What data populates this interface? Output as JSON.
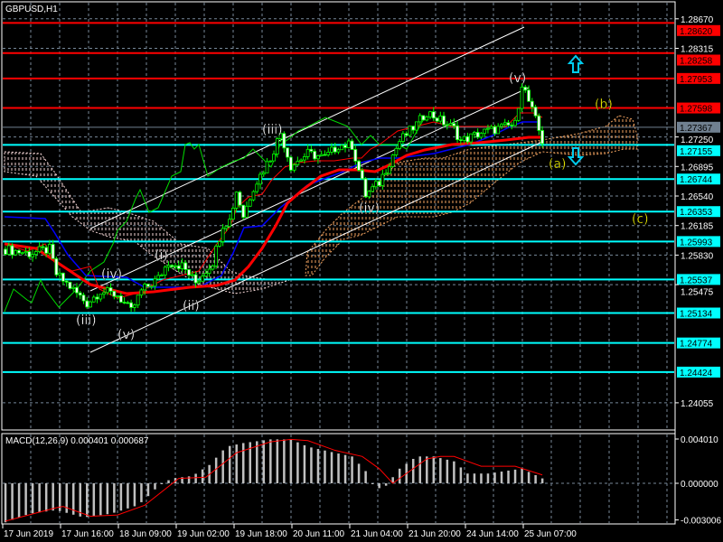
{
  "header": {
    "symbol_timeframe": "GBPUSD,H1"
  },
  "macd": {
    "label": "MACD(12,26,9) 0.000401 0.000687"
  },
  "colors": {
    "red_level": "#ff0000",
    "cyan_level": "#00ffff",
    "current_price": "#708090",
    "candle": "#00ff00",
    "wave_white": "#ffffff",
    "wave_yellow": "#e8e800"
  },
  "price_axis": {
    "ticks": [
      "1.28670",
      "1.28315",
      "1.27250",
      "1.26895",
      "1.26540",
      "1.26185",
      "1.25830",
      "1.25475",
      "1.24055"
    ],
    "current_price": "1.27367"
  },
  "levels": {
    "red": [
      "1.28620",
      "1.28258",
      "1.27953",
      "1.27598"
    ],
    "cyan": [
      "1.27155",
      "1.26744",
      "1.26353",
      "1.25993",
      "1.25537",
      "1.25134",
      "1.24774",
      "1.24424"
    ]
  },
  "macd_axis": {
    "ticks": [
      "0.004010",
      "0.000000",
      "-0.003006"
    ]
  },
  "time_axis": {
    "labels": [
      "17 Jun 2019",
      "17 Jun 16:00",
      "18 Jun 09:00",
      "19 Jun 02:00",
      "19 Jun 18:00",
      "20 Jun 11:00",
      "21 Jun 04:00",
      "21 Jun 20:00",
      "24 Jun 14:00",
      "25 Jun 07:00"
    ]
  },
  "waves": {
    "white": [
      "(iii)",
      "(iv)",
      "(v)",
      "(i)",
      "(ii)",
      "(iii)",
      "(iv)",
      "(v)"
    ],
    "yellow": [
      "(a)",
      "(b)",
      "(c)"
    ]
  },
  "chart_data": {
    "type": "candlestick",
    "title": "GBPUSD,H1",
    "timeframe": "H1",
    "ylim": [
      1.239,
      1.2872
    ],
    "price_path": [
      [
        0,
        1.259
      ],
      [
        7,
        1.2585
      ],
      [
        13,
        1.259
      ],
      [
        15,
        1.256
      ],
      [
        19,
        1.2545
      ],
      [
        24,
        1.2525
      ],
      [
        28,
        1.254
      ],
      [
        33,
        1.2535
      ],
      [
        37,
        1.2515
      ],
      [
        40,
        1.254
      ],
      [
        45,
        1.2555
      ],
      [
        48,
        1.2575
      ],
      [
        52,
        1.257
      ],
      [
        56,
        1.255
      ],
      [
        61,
        1.2575
      ],
      [
        64,
        1.262
      ],
      [
        66,
        1.2625
      ],
      [
        68,
        1.266
      ],
      [
        70,
        1.263
      ],
      [
        73,
        1.2665
      ],
      [
        78,
        1.27
      ],
      [
        81,
        1.273
      ],
      [
        84,
        1.269
      ],
      [
        89,
        1.2705
      ],
      [
        94,
        1.27
      ],
      [
        98,
        1.2715
      ],
      [
        102,
        1.2715
      ],
      [
        106,
        1.2655
      ],
      [
        110,
        1.267
      ],
      [
        116,
        1.272
      ],
      [
        121,
        1.274
      ],
      [
        124,
        1.2755
      ],
      [
        128,
        1.2745
      ],
      [
        132,
        1.2735
      ],
      [
        134,
        1.272
      ],
      [
        140,
        1.273
      ],
      [
        145,
        1.2735
      ],
      [
        150,
        1.274
      ],
      [
        152,
        1.279
      ],
      [
        156,
        1.2745
      ],
      [
        158,
        1.272
      ]
    ],
    "macd_hist": [
      [
        0,
        -0.0032
      ],
      [
        7,
        -0.0025
      ],
      [
        15,
        -0.0022
      ],
      [
        23,
        -0.0028
      ],
      [
        31,
        -0.0025
      ],
      [
        39,
        -0.0018
      ],
      [
        43,
        -0.0008
      ],
      [
        45,
        -0.0002
      ],
      [
        49,
        0.0004
      ],
      [
        55,
        0.0006
      ],
      [
        60,
        0.0015
      ],
      [
        65,
        0.003
      ],
      [
        70,
        0.0033
      ],
      [
        78,
        0.0036
      ],
      [
        84,
        0.0036
      ],
      [
        89,
        0.003
      ],
      [
        97,
        0.0025
      ],
      [
        102,
        0.0022
      ],
      [
        106,
        0.001
      ],
      [
        109,
        -0.0005
      ],
      [
        112,
        -0.0002
      ],
      [
        116,
        0.0012
      ],
      [
        121,
        0.0022
      ],
      [
        126,
        0.0022
      ],
      [
        132,
        0.0018
      ],
      [
        136,
        0.0008
      ],
      [
        142,
        0.0008
      ],
      [
        152,
        0.0012
      ],
      [
        158,
        0.000401
      ]
    ],
    "macd_signal": [
      [
        0,
        -0.0031
      ],
      [
        15,
        -0.002
      ],
      [
        17,
        -0.0019
      ],
      [
        25,
        -0.0027
      ],
      [
        33,
        -0.0026
      ],
      [
        41,
        -0.0018
      ],
      [
        51,
        0.0004
      ],
      [
        59,
        0.0005
      ],
      [
        68,
        0.0025
      ],
      [
        78,
        0.0034
      ],
      [
        84,
        0.0036
      ],
      [
        89,
        0.0035
      ],
      [
        97,
        0.0027
      ],
      [
        105,
        0.0022
      ],
      [
        110,
        0.0012
      ],
      [
        114,
        0.0
      ],
      [
        117,
        0.0006
      ],
      [
        124,
        0.002
      ],
      [
        128,
        0.0022
      ],
      [
        132,
        0.0022
      ],
      [
        140,
        0.0014
      ],
      [
        150,
        0.0014
      ],
      [
        158,
        0.000687
      ]
    ]
  }
}
